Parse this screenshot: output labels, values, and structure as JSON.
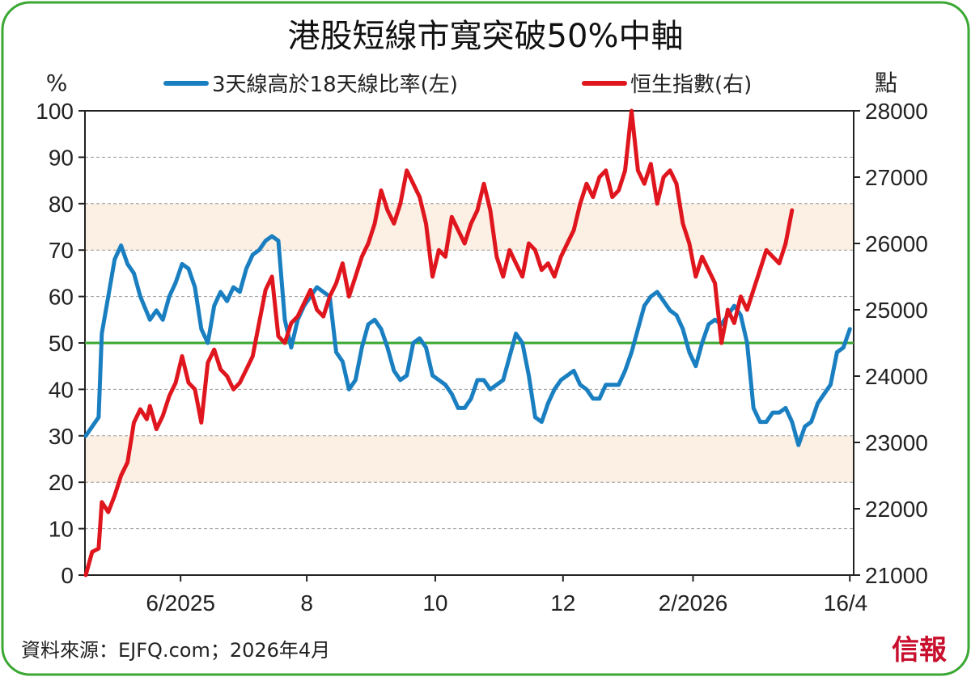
{
  "chart_data": {
    "type": "line",
    "title": "港股短線市寬突破50%中軸",
    "source": "資料來源：EJFQ.com；2026年4月",
    "brand": "信報",
    "left_unit": "%",
    "right_unit": "點",
    "legend": [
      {
        "name": "3天線高於18天線比率(左)",
        "color": "#1a7fc1"
      },
      {
        "name": "恒生指數(右)",
        "color": "#e0161e"
      }
    ],
    "left_axis": {
      "min": 0,
      "max": 100,
      "ticks": [
        0,
        10,
        20,
        30,
        40,
        50,
        60,
        70,
        80,
        90,
        100
      ]
    },
    "right_axis": {
      "min": 21000,
      "max": 28000,
      "ticks": [
        21000,
        22000,
        23000,
        24000,
        25000,
        26000,
        27000,
        28000
      ]
    },
    "x_ticks": [
      {
        "label": "6/2025",
        "t": 0.125
      },
      {
        "label": "8",
        "t": 0.29
      },
      {
        "label": "10",
        "t": 0.458
      },
      {
        "label": "12",
        "t": 0.625
      },
      {
        "label": "2/2026",
        "t": 0.795
      },
      {
        "label": "16/4",
        "t": 1.0
      }
    ],
    "shaded_bands": [
      [
        20,
        30
      ],
      [
        70,
        80
      ]
    ],
    "midline": {
      "value": 50,
      "color": "#3aa832"
    },
    "series": [
      {
        "name": "3天線高於18天線比率(左)",
        "axis": "left",
        "color": "#1a7fc1",
        "points": [
          [
            0,
            30
          ],
          [
            0.02,
            34
          ],
          [
            0.025,
            52
          ],
          [
            0.035,
            60
          ],
          [
            0.045,
            68
          ],
          [
            0.055,
            71
          ],
          [
            0.065,
            67
          ],
          [
            0.075,
            65
          ],
          [
            0.085,
            60
          ],
          [
            0.1,
            55
          ],
          [
            0.11,
            57
          ],
          [
            0.12,
            55
          ],
          [
            0.13,
            60
          ],
          [
            0.14,
            63
          ],
          [
            0.15,
            67
          ],
          [
            0.16,
            66
          ],
          [
            0.17,
            62
          ],
          [
            0.18,
            53
          ],
          [
            0.19,
            50
          ],
          [
            0.2,
            58
          ],
          [
            0.21,
            61
          ],
          [
            0.22,
            59
          ],
          [
            0.23,
            62
          ],
          [
            0.24,
            61
          ],
          [
            0.25,
            66
          ],
          [
            0.26,
            69
          ],
          [
            0.27,
            70
          ],
          [
            0.28,
            72
          ],
          [
            0.29,
            73
          ],
          [
            0.3,
            72
          ],
          [
            0.31,
            55
          ],
          [
            0.32,
            49
          ],
          [
            0.33,
            55
          ],
          [
            0.34,
            58
          ],
          [
            0.35,
            60
          ],
          [
            0.36,
            62
          ],
          [
            0.37,
            61
          ],
          [
            0.38,
            60
          ],
          [
            0.39,
            48
          ],
          [
            0.4,
            46
          ],
          [
            0.41,
            40
          ],
          [
            0.42,
            42
          ],
          [
            0.43,
            49
          ],
          [
            0.44,
            54
          ],
          [
            0.45,
            55
          ],
          [
            0.46,
            53
          ],
          [
            0.47,
            49
          ],
          [
            0.48,
            44
          ],
          [
            0.49,
            42
          ],
          [
            0.5,
            43
          ],
          [
            0.51,
            50
          ],
          [
            0.52,
            51
          ],
          [
            0.53,
            49
          ],
          [
            0.54,
            43
          ],
          [
            0.55,
            42
          ],
          [
            0.56,
            41
          ],
          [
            0.57,
            39
          ],
          [
            0.58,
            36
          ],
          [
            0.59,
            36
          ],
          [
            0.6,
            38
          ],
          [
            0.61,
            42
          ],
          [
            0.62,
            42
          ],
          [
            0.63,
            40
          ],
          [
            0.64,
            41
          ],
          [
            0.65,
            42
          ],
          [
            0.66,
            47
          ],
          [
            0.67,
            52
          ],
          [
            0.68,
            50
          ],
          [
            0.69,
            43
          ],
          [
            0.7,
            34
          ],
          [
            0.71,
            33
          ],
          [
            0.72,
            37
          ],
          [
            0.73,
            40
          ],
          [
            0.74,
            42
          ],
          [
            0.75,
            43
          ],
          [
            0.76,
            44
          ],
          [
            0.77,
            41
          ],
          [
            0.78,
            40
          ],
          [
            0.79,
            38
          ],
          [
            0.8,
            38
          ],
          [
            0.81,
            41
          ],
          [
            0.82,
            41
          ],
          [
            0.83,
            41
          ],
          [
            0.84,
            44
          ],
          [
            0.85,
            48
          ],
          [
            0.86,
            53
          ],
          [
            0.87,
            58
          ],
          [
            0.88,
            60
          ],
          [
            0.89,
            61
          ],
          [
            0.9,
            59
          ],
          [
            0.91,
            57
          ],
          [
            0.92,
            56
          ],
          [
            0.93,
            53
          ],
          [
            0.94,
            48
          ],
          [
            0.95,
            45
          ],
          [
            0.96,
            50
          ],
          [
            0.97,
            54
          ],
          [
            0.98,
            55
          ],
          [
            0.99,
            54
          ],
          [
            1.0,
            56
          ],
          [
            1.01,
            58
          ],
          [
            1.02,
            56
          ],
          [
            1.03,
            50
          ],
          [
            1.04,
            36
          ],
          [
            1.05,
            33
          ],
          [
            1.06,
            33
          ],
          [
            1.07,
            35
          ],
          [
            1.08,
            35
          ],
          [
            1.09,
            36
          ],
          [
            1.1,
            33
          ],
          [
            1.11,
            28
          ],
          [
            1.12,
            32
          ],
          [
            1.13,
            33
          ],
          [
            1.14,
            37
          ],
          [
            1.15,
            39
          ],
          [
            1.16,
            41
          ],
          [
            1.17,
            48
          ],
          [
            1.18,
            49
          ],
          [
            1.19,
            53
          ]
        ]
      },
      {
        "name": "恒生指數(右)",
        "axis": "right",
        "color": "#e0161e",
        "points": [
          [
            0,
            21000
          ],
          [
            0.01,
            21350
          ],
          [
            0.02,
            21400
          ],
          [
            0.025,
            22100
          ],
          [
            0.035,
            21950
          ],
          [
            0.045,
            22200
          ],
          [
            0.055,
            22500
          ],
          [
            0.065,
            22700
          ],
          [
            0.075,
            23300
          ],
          [
            0.085,
            23500
          ],
          [
            0.095,
            23350
          ],
          [
            0.1,
            23550
          ],
          [
            0.11,
            23200
          ],
          [
            0.12,
            23400
          ],
          [
            0.13,
            23700
          ],
          [
            0.14,
            23900
          ],
          [
            0.15,
            24300
          ],
          [
            0.16,
            23900
          ],
          [
            0.17,
            23800
          ],
          [
            0.18,
            23300
          ],
          [
            0.19,
            24200
          ],
          [
            0.2,
            24400
          ],
          [
            0.21,
            24100
          ],
          [
            0.22,
            24000
          ],
          [
            0.23,
            23800
          ],
          [
            0.24,
            23900
          ],
          [
            0.25,
            24100
          ],
          [
            0.26,
            24300
          ],
          [
            0.27,
            24800
          ],
          [
            0.28,
            25300
          ],
          [
            0.29,
            25500
          ],
          [
            0.3,
            24600
          ],
          [
            0.31,
            24500
          ],
          [
            0.32,
            24800
          ],
          [
            0.33,
            24900
          ],
          [
            0.34,
            25100
          ],
          [
            0.35,
            25300
          ],
          [
            0.36,
            25000
          ],
          [
            0.37,
            24900
          ],
          [
            0.38,
            25200
          ],
          [
            0.39,
            25400
          ],
          [
            0.4,
            25700
          ],
          [
            0.41,
            25200
          ],
          [
            0.42,
            25500
          ],
          [
            0.43,
            25800
          ],
          [
            0.44,
            26000
          ],
          [
            0.45,
            26300
          ],
          [
            0.46,
            26800
          ],
          [
            0.47,
            26500
          ],
          [
            0.48,
            26300
          ],
          [
            0.49,
            26600
          ],
          [
            0.5,
            27100
          ],
          [
            0.51,
            26900
          ],
          [
            0.52,
            26700
          ],
          [
            0.53,
            26300
          ],
          [
            0.54,
            25500
          ],
          [
            0.55,
            25900
          ],
          [
            0.56,
            25800
          ],
          [
            0.57,
            26400
          ],
          [
            0.58,
            26200
          ],
          [
            0.59,
            26000
          ],
          [
            0.6,
            26300
          ],
          [
            0.61,
            26500
          ],
          [
            0.62,
            26900
          ],
          [
            0.63,
            26500
          ],
          [
            0.64,
            25800
          ],
          [
            0.65,
            25500
          ],
          [
            0.66,
            25900
          ],
          [
            0.67,
            25700
          ],
          [
            0.68,
            25500
          ],
          [
            0.69,
            26000
          ],
          [
            0.7,
            25900
          ],
          [
            0.71,
            25600
          ],
          [
            0.72,
            25700
          ],
          [
            0.73,
            25500
          ],
          [
            0.74,
            25800
          ],
          [
            0.75,
            26000
          ],
          [
            0.76,
            26200
          ],
          [
            0.77,
            26600
          ],
          [
            0.78,
            26900
          ],
          [
            0.79,
            26700
          ],
          [
            0.8,
            27000
          ],
          [
            0.81,
            27100
          ],
          [
            0.82,
            26700
          ],
          [
            0.83,
            26800
          ],
          [
            0.84,
            27100
          ],
          [
            0.85,
            28000
          ],
          [
            0.86,
            27100
          ],
          [
            0.87,
            26900
          ],
          [
            0.88,
            27200
          ],
          [
            0.89,
            26600
          ],
          [
            0.9,
            27000
          ],
          [
            0.91,
            27100
          ],
          [
            0.92,
            26900
          ],
          [
            0.93,
            26300
          ],
          [
            0.94,
            26000
          ],
          [
            0.95,
            25500
          ],
          [
            0.96,
            25800
          ],
          [
            0.97,
            25600
          ],
          [
            0.98,
            25400
          ],
          [
            0.99,
            24500
          ],
          [
            1.0,
            25000
          ],
          [
            1.01,
            24800
          ],
          [
            1.02,
            25200
          ],
          [
            1.03,
            25000
          ],
          [
            1.04,
            25300
          ],
          [
            1.05,
            25600
          ],
          [
            1.06,
            25900
          ],
          [
            1.07,
            25800
          ],
          [
            1.08,
            25700
          ],
          [
            1.09,
            26000
          ],
          [
            1.1,
            26500
          ]
        ]
      }
    ]
  }
}
